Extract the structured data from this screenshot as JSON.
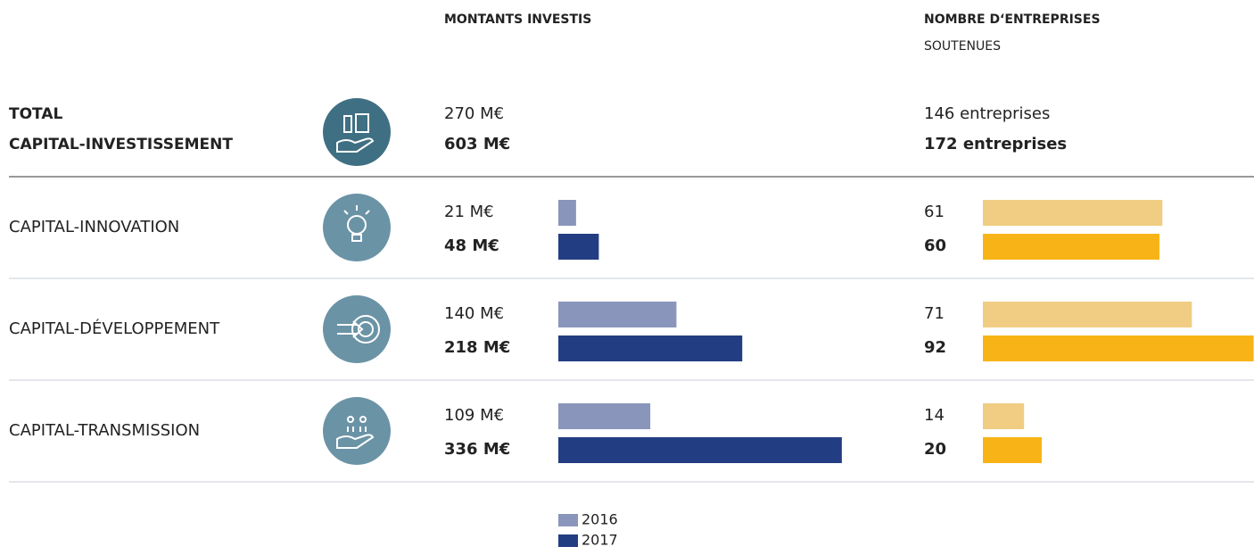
{
  "chart_data": {
    "type": "paired-bar-table",
    "amount_title": "MONTANTS INVESTIS",
    "count_title": "NOMBRE D‘ENTREPRISES",
    "count_subtitle": "SOUTENUES",
    "total": {
      "label": [
        "TOTAL",
        "CAPITAL-INVESTISSEMENT"
      ],
      "amounts": [
        270,
        603
      ],
      "amount_labels": [
        "270 M€",
        "603 M€"
      ],
      "counts": [
        146,
        172
      ],
      "count_labels": [
        "146 entreprises",
        "172 entreprises"
      ]
    },
    "categories": [
      "CAPITAL-INNOVATION",
      "CAPITAL-DÉVELOPPEMENT",
      "CAPITAL-TRANSMISSION"
    ],
    "amount_series": [
      {
        "name": "2016",
        "color": "#8a95bb",
        "values": [
          21,
          140,
          109
        ],
        "value_labels": [
          "21 M€",
          "140 M€",
          "109 M€"
        ]
      },
      {
        "name": "2017",
        "color": "#233d82",
        "values": [
          48,
          218,
          336
        ],
        "value_labels": [
          "48 M€",
          "218 M€",
          "336 M€"
        ]
      }
    ],
    "count_series": [
      {
        "color": "#f0cd82",
        "values": [
          61,
          71,
          14
        ]
      },
      {
        "color": "#f8b416",
        "values": [
          60,
          92,
          20
        ]
      }
    ]
  }
}
